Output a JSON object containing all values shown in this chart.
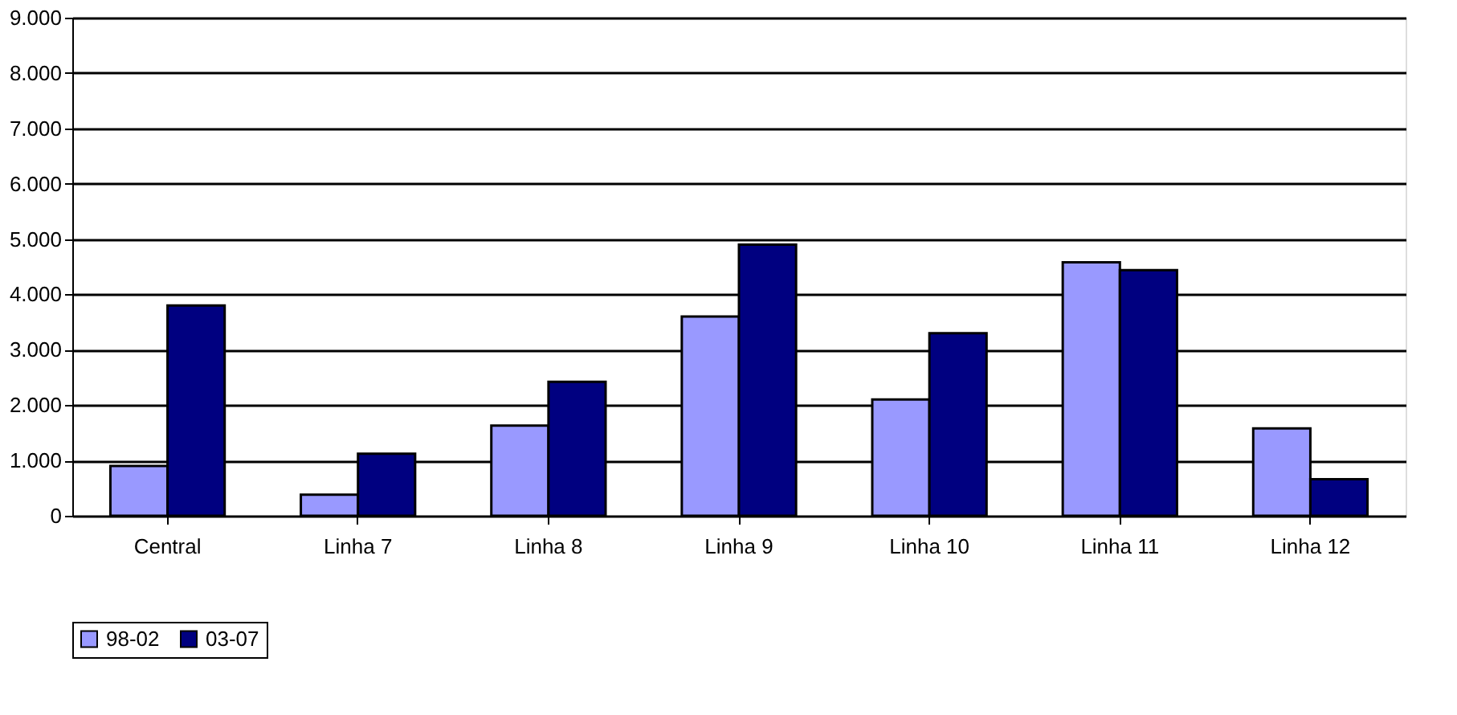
{
  "chart_data": {
    "type": "bar",
    "categories": [
      "Central",
      "Linha 7",
      "Linha 8",
      "Linha 9",
      "Linha 10",
      "Linha 11",
      "Linha 12"
    ],
    "series": [
      {
        "name": "98-02",
        "color": "#9999ff",
        "values": [
          900,
          380,
          1630,
          3600,
          2100,
          4580,
          1580
        ]
      },
      {
        "name": "03-07",
        "color": "#000080",
        "values": [
          3800,
          1120,
          2420,
          4900,
          3300,
          4440,
          660
        ]
      }
    ],
    "ylim": [
      0,
      9000
    ],
    "yticks": [
      0,
      {
        "value": 1000,
        "label": "1.000"
      },
      {
        "value": 2000,
        "label": "2.000"
      },
      {
        "value": 3000,
        "label": "3.000"
      },
      {
        "value": 4000,
        "label": "4.000"
      },
      {
        "value": 5000,
        "label": "5.000"
      },
      {
        "value": 6000,
        "label": "6.000"
      },
      {
        "value": 7000,
        "label": "7.000"
      },
      {
        "value": 8000,
        "label": "8.000"
      },
      {
        "value": 9000,
        "label": "9.000"
      }
    ],
    "grid": "y",
    "legend": "bottom"
  }
}
